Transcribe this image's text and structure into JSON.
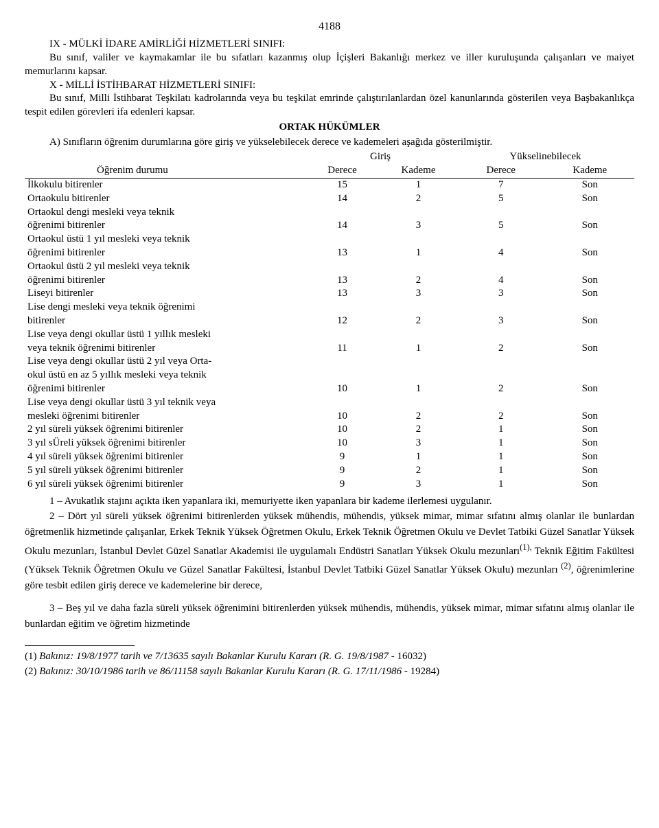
{
  "page_number": "4188",
  "section_ix_title": "IX - MÜLKİ İDARE AMİRLİĞİ HİZMETLERİ SINIFI:",
  "section_ix_body": "Bu sınıf, valiler ve kaymakamlar ile bu sıfatları kazanmış olup İçişleri Bakanlığı merkez ve iller kuruluşunda çalışanları ve maiyet memurlarını kapsar.",
  "section_x_title": "X - MİLLİ İSTİHBARAT HİZMETLERİ SINIFI:",
  "section_x_body": "Bu sınıf, Milli İstihbarat Teşkilatı kadrolarında veya bu teşkilat emrinde çalıştırılanlardan özel kanunlarında gösterilen veya Başbakanlıkça tespit edilen görevleri ifa edenleri kapsar.",
  "ortak_header": "ORTAK HÜKÜMLER",
  "ortak_line_a": "A) Sınıfların öğrenim durumlarına göre giriş ve yükselebilecek derece ve kademeleri aşağıda gösterilmiştir.",
  "table_headers": {
    "giris": "Giriş",
    "yuksel": "Yükselinebilecek",
    "ogrenim": "Öğrenim durumu",
    "derece": "Derece",
    "kademe": "Kademe"
  },
  "rows": [
    {
      "label": "İlkokulu bitirenler",
      "g_d": "15",
      "g_k": "1",
      "y_d": "7",
      "y_k": "Son"
    },
    {
      "label": "Ortaokulu bitirenler",
      "g_d": "14",
      "g_k": "2",
      "y_d": "5",
      "y_k": "Son"
    },
    {
      "label": "Ortaokul dengi mesleki veya teknik\nöğrenimi bitirenler",
      "g_d": "14",
      "g_k": "3",
      "y_d": "5",
      "y_k": "Son"
    },
    {
      "label": "Ortaokul üstü 1 yıl mesleki veya teknik\nöğrenimi bitirenler",
      "g_d": "13",
      "g_k": "1",
      "y_d": "4",
      "y_k": "Son"
    },
    {
      "label": "Ortaokul üstü 2 yıl mesleki veya teknik\nöğrenimi bitirenler",
      "g_d": "13",
      "g_k": "2",
      "y_d": "4",
      "y_k": "Son"
    },
    {
      "label": "Liseyi bitirenler",
      "g_d": "13",
      "g_k": "3",
      "y_d": "3",
      "y_k": "Son"
    },
    {
      "label": "Lise dengi mesleki veya teknik öğrenimi\nbitirenler",
      "g_d": "12",
      "g_k": "2",
      "y_d": "3",
      "y_k": "Son"
    },
    {
      "label": "Lise veya dengi okullar üstü 1 yıllık mesleki\nveya teknik öğrenimi bitirenler",
      "g_d": "11",
      "g_k": "1",
      "y_d": "2",
      "y_k": "Son"
    },
    {
      "label": "Lise veya dengi okullar üstü 2 yıl veya Orta-\nokul üstü en az 5 yıllık mesleki veya teknik\nöğrenimi bitirenler",
      "g_d": "10",
      "g_k": "1",
      "y_d": "2",
      "y_k": "Son"
    },
    {
      "label": "Lise veya dengi okullar üstü 3 yıl teknik veya\nmesleki  öğrenimi bitirenler",
      "g_d": "10",
      "g_k": "2",
      "y_d": "2",
      "y_k": "Son"
    },
    {
      "label": "2 yıl süreli yüksek öğrenimi bitirenler",
      "g_d": "10",
      "g_k": "2",
      "y_d": "1",
      "y_k": "Son"
    },
    {
      "label": "3 yıl sÜreli yüksek öğrenimi bitirenler",
      "g_d": "10",
      "g_k": "3",
      "y_d": "1",
      "y_k": "Son"
    },
    {
      "label": "4 yıl süreli yüksek öğrenimi bitirenler",
      "g_d": "9",
      "g_k": "1",
      "y_d": "1",
      "y_k": "Son"
    },
    {
      "label": "5 yıl süreli yüksek öğrenimi bitirenler",
      "g_d": "9",
      "g_k": "2",
      "y_d": "1",
      "y_k": "Son"
    },
    {
      "label": "6 yıl süreli yüksek öğrenimi bitirenler",
      "g_d": "9",
      "g_k": "3",
      "y_d": "1",
      "y_k": "Son"
    }
  ],
  "note1": "1 – Avukatlık stajını açıkta iken yapanlara iki, memuriyette iken yapanlara bir kademe ilerlemesi uygulanır.",
  "note2_a": "2 – Dört yıl süreli yüksek öğrenimi bitirenlerden yüksek mühendis, mühendis, yüksek mimar, mimar sıfatını almış olanlar ile bunlardan öğretmenlik hizmetinde çalışanlar, Erkek Teknik Yüksek Öğretmen Okulu, Erkek Teknik Öğretmen Okulu ve Devlet Tatbiki Güzel Sanatlar Yüksek Okulu mezunları, İstanbul Devlet Güzel Sanatlar Akademisi ile uygulamalı Endüstri Sanatları Yüksek Okulu mezunları",
  "note2_sup1": "(1),",
  "note2_b": " Teknik Eğitim Fakültesi (Yüksek Teknik Öğretmen Okulu ve Güzel Sanatlar Fakültesi, İstanbul Devlet Tatbiki Güzel Sanatlar Yüksek Okulu) mezunları ",
  "note2_sup2": "(2)",
  "note2_c": ", öğrenimlerine göre tesbit edilen giriş derece ve kademelerine bir derece,",
  "note3": "3 – Beş yıl ve daha fazla süreli yüksek öğrenimini bitirenlerden yüksek mühendis,  mühendis, yüksek mimar, mimar sıfatını almış olanlar ile bunlardan eğitim ve öğretim hizmetinde",
  "footnote1_lead": "(1)   ",
  "footnote1_body": "Bakınız: 19/8/1977 tarih ve 7/13635 sayılı Bakanlar Kurulu Kararı (R. G. 19/8/1987",
  "footnote1_tail": " - 16032)",
  "footnote2_lead": "(2)   ",
  "footnote2_body": "Bakınız: 30/10/1986 tarih ve 86/11158 sayılı Bakanlar Kurulu Kararı (R. G. 17/11/1986",
  "footnote2_tail": " - 19284)"
}
